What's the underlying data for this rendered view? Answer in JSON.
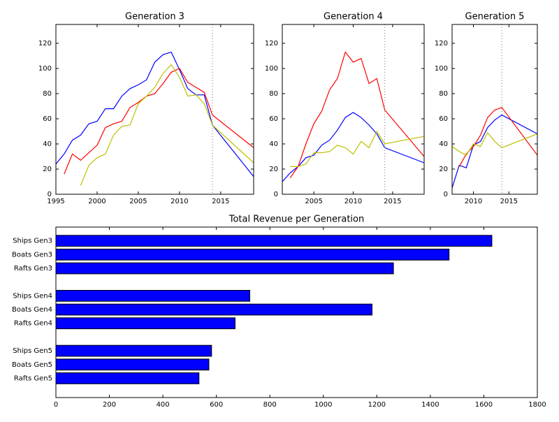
{
  "chart_data": [
    {
      "type": "line",
      "title": "Generation 3",
      "x": [
        1995,
        1996,
        1997,
        1998,
        1999,
        2000,
        2001,
        2002,
        2003,
        2004,
        2005,
        2006,
        2007,
        2008,
        2009,
        2010,
        2011,
        2012,
        2013,
        2014,
        2019
      ],
      "series": [
        {
          "color": "#0000ff",
          "values": [
            24,
            32,
            43,
            47,
            56,
            58,
            68,
            68,
            78,
            84,
            87,
            91,
            105,
            111,
            113,
            99,
            84,
            79,
            79,
            55,
            14
          ]
        },
        {
          "color": "#ff0000",
          "values": [
            null,
            16,
            32,
            27,
            33,
            39,
            53,
            56,
            58,
            69,
            73,
            78,
            80,
            88,
            97,
            100,
            89,
            85,
            81,
            63,
            37
          ]
        },
        {
          "color": "#bfbf00",
          "values": [
            null,
            null,
            null,
            7,
            23,
            29,
            32,
            47,
            54,
            55,
            72,
            78,
            85,
            96,
            103,
            93,
            78,
            79,
            72,
            55,
            25
          ]
        }
      ],
      "xlim": [
        1995,
        2019
      ],
      "ylim": [
        0,
        135
      ],
      "xticks": [
        1995,
        2000,
        2005,
        2010,
        2015
      ],
      "yticks": [
        0,
        20,
        40,
        60,
        80,
        100,
        120
      ],
      "vline": 2014
    },
    {
      "type": "line",
      "title": "Generation 4",
      "x": [
        2001,
        2002,
        2003,
        2004,
        2005,
        2006,
        2007,
        2008,
        2009,
        2010,
        2011,
        2012,
        2013,
        2014,
        2019
      ],
      "series": [
        {
          "color": "#0000ff",
          "values": [
            10,
            17,
            22,
            29,
            31,
            39,
            43,
            51,
            61,
            65,
            61,
            55,
            48,
            37,
            25
          ]
        },
        {
          "color": "#ff0000",
          "values": [
            null,
            13,
            22,
            40,
            56,
            66,
            83,
            92,
            113,
            105,
            108,
            88,
            92,
            67,
            30
          ]
        },
        {
          "color": "#bfbf00",
          "values": [
            null,
            22,
            22,
            24,
            33,
            33,
            34,
            39,
            37,
            32,
            42,
            37,
            50,
            40,
            46
          ]
        }
      ],
      "xlim": [
        2001,
        2019
      ],
      "ylim": [
        0,
        135
      ],
      "xticks": [
        2005,
        2010,
        2015
      ],
      "yticks": [
        0,
        20,
        40,
        60,
        80,
        100,
        120
      ],
      "vline": 2014
    },
    {
      "type": "line",
      "title": "Generation 5",
      "x": [
        2007,
        2008,
        2009,
        2010,
        2011,
        2012,
        2013,
        2014,
        2019
      ],
      "series": [
        {
          "color": "#0000ff",
          "values": [
            5,
            23,
            21,
            39,
            42,
            53,
            59,
            63,
            48
          ]
        },
        {
          "color": "#ff0000",
          "values": [
            null,
            22,
            32,
            38,
            47,
            61,
            67,
            69,
            31
          ]
        },
        {
          "color": "#bfbf00",
          "values": [
            38,
            34,
            31,
            40,
            38,
            49,
            42,
            37,
            48
          ]
        }
      ],
      "xlim": [
        2007,
        2019
      ],
      "ylim": [
        0,
        135
      ],
      "xticks": [
        2010,
        2015
      ],
      "yticks": [
        0,
        20,
        40,
        60,
        80,
        100,
        120
      ],
      "vline": 2014
    },
    {
      "type": "barh",
      "title": "Total Revenue per Generation",
      "categories": [
        "Ships Gen3",
        "Boats Gen3",
        "Rafts Gen3",
        null,
        "Ships Gen4",
        "Boats Gen4",
        "Rafts Gen4",
        null,
        "Ships Gen5",
        "Boats Gen5",
        "Rafts Gen5"
      ],
      "values": [
        1630,
        1470,
        1262,
        null,
        725,
        1182,
        670,
        null,
        582,
        572,
        535
      ],
      "color": "#0000ff",
      "xlim": [
        0,
        1800
      ],
      "xticks": [
        0,
        200,
        400,
        600,
        800,
        1000,
        1200,
        1400,
        1600,
        1800
      ]
    }
  ]
}
